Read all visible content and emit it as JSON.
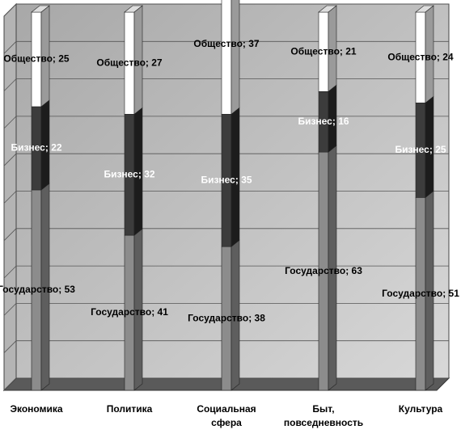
{
  "chart_data": {
    "type": "stacked_bar_3d",
    "categories": [
      "Экономика",
      "Политика",
      "Социальная\nсфера",
      "Быт,\nповседневность",
      "Культура"
    ],
    "series": [
      {
        "name": "Государство",
        "color": "#8c8c8c",
        "side_color": "#5e5e5e",
        "label_color": "#000000",
        "values": [
          53,
          41,
          38,
          63,
          51
        ],
        "value_labels": [
          "Государство; 53",
          "Государство; 41",
          "Государство; 38",
          "Государство; 63",
          "Государство; 51"
        ]
      },
      {
        "name": "Бизнес",
        "color": "#3c3c3c",
        "side_color": "#1c1c1c",
        "label_color": "#ffffff",
        "values": [
          22,
          32,
          35,
          16,
          25
        ],
        "value_labels": [
          "Бизнес; 22",
          "Бизнес; 32",
          "Бизнес; 35",
          "Бизнес; 16",
          "Бизнес; 25"
        ]
      },
      {
        "name": "Общество",
        "color": "#ffffff",
        "side_color": "#9a9a9a",
        "label_color": "#000000",
        "values": [
          25,
          27,
          37,
          21,
          24
        ],
        "value_labels": [
          "Общество; 25",
          "Общество; 27",
          "Общество; 37",
          "Общество; 21",
          "Общество; 24"
        ]
      }
    ],
    "ylim": [
      0,
      100
    ],
    "yticks": [
      0,
      10,
      20,
      30,
      40,
      50,
      60,
      70,
      80,
      90,
      100
    ],
    "grid": true,
    "legend": false
  }
}
